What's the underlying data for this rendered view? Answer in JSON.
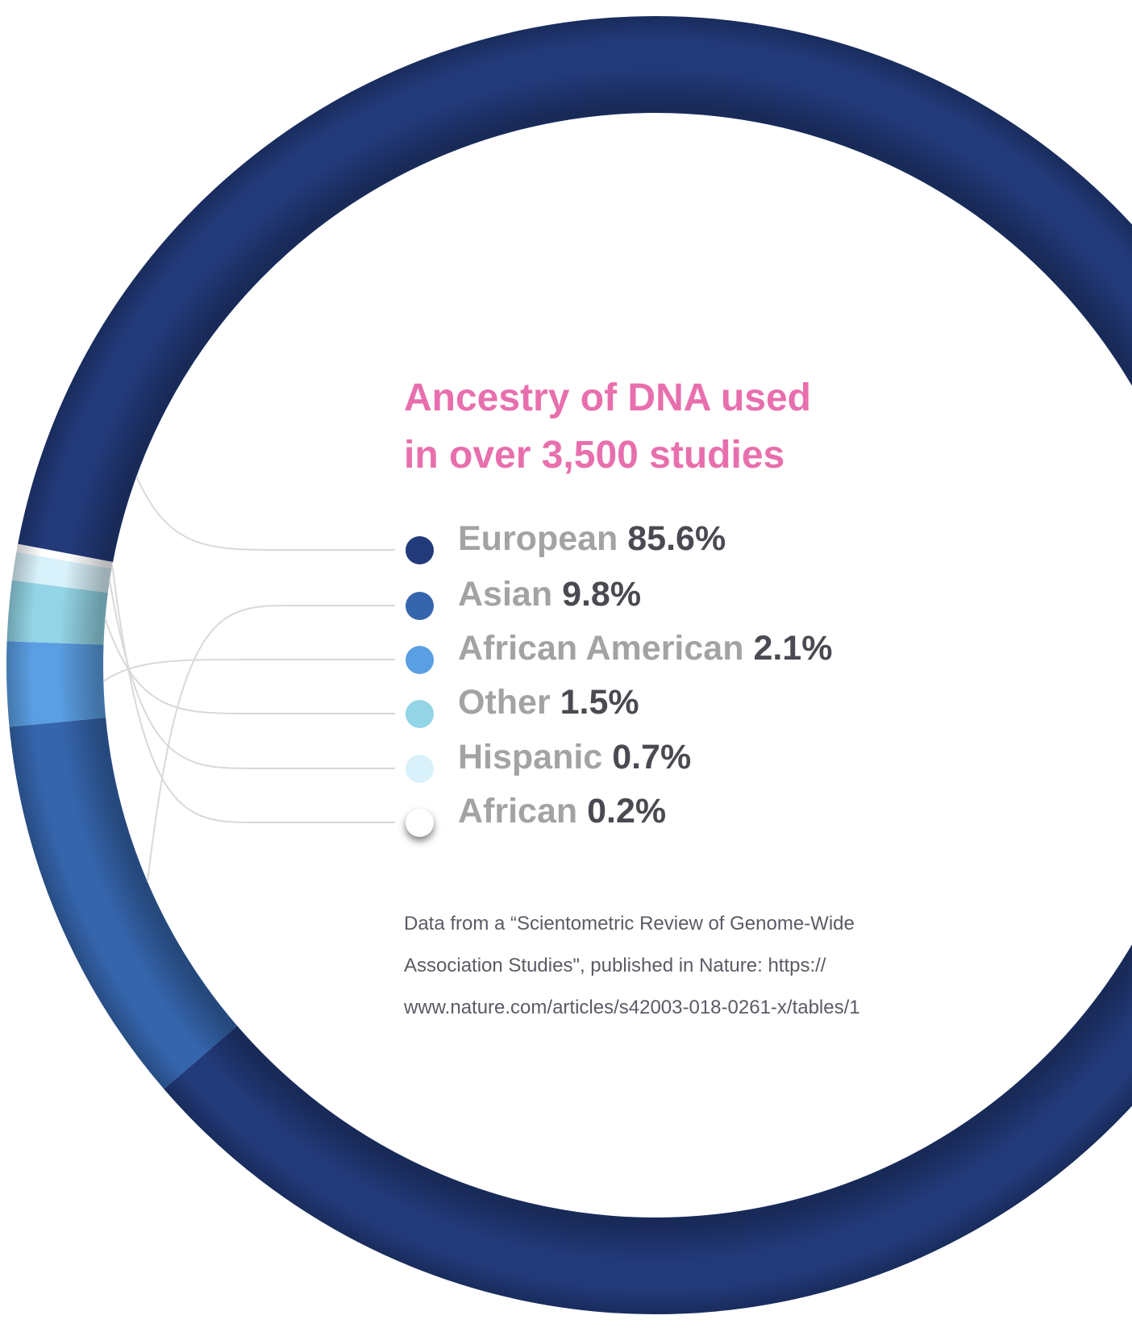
{
  "title": {
    "line1": "Ancestry of DNA used",
    "line2": "in over 3,500 studies"
  },
  "chart_data": {
    "type": "pie",
    "title": "Ancestry of DNA used in over 3,500 studies",
    "categories": [
      "European",
      "Asian",
      "African American",
      "Other",
      "Hispanic",
      "African"
    ],
    "values": [
      85.6,
      9.8,
      2.1,
      1.5,
      0.7,
      0.2
    ],
    "value_labels": [
      "85.6%",
      "9.8%",
      "2.1%",
      "1.5%",
      "0.7%",
      "0.2%"
    ],
    "colors": [
      "#223a7a",
      "#3565ad",
      "#5a9ee3",
      "#93d5e6",
      "#d8f1fa",
      "#ffffff"
    ]
  },
  "source": {
    "line1": "Data from a “Scientometric Review of Genome-Wide",
    "line2": "Association Studies\", published in Nature: https://",
    "line3": "www.nature.com/articles/s42003-018-0261-x/tables/1"
  }
}
